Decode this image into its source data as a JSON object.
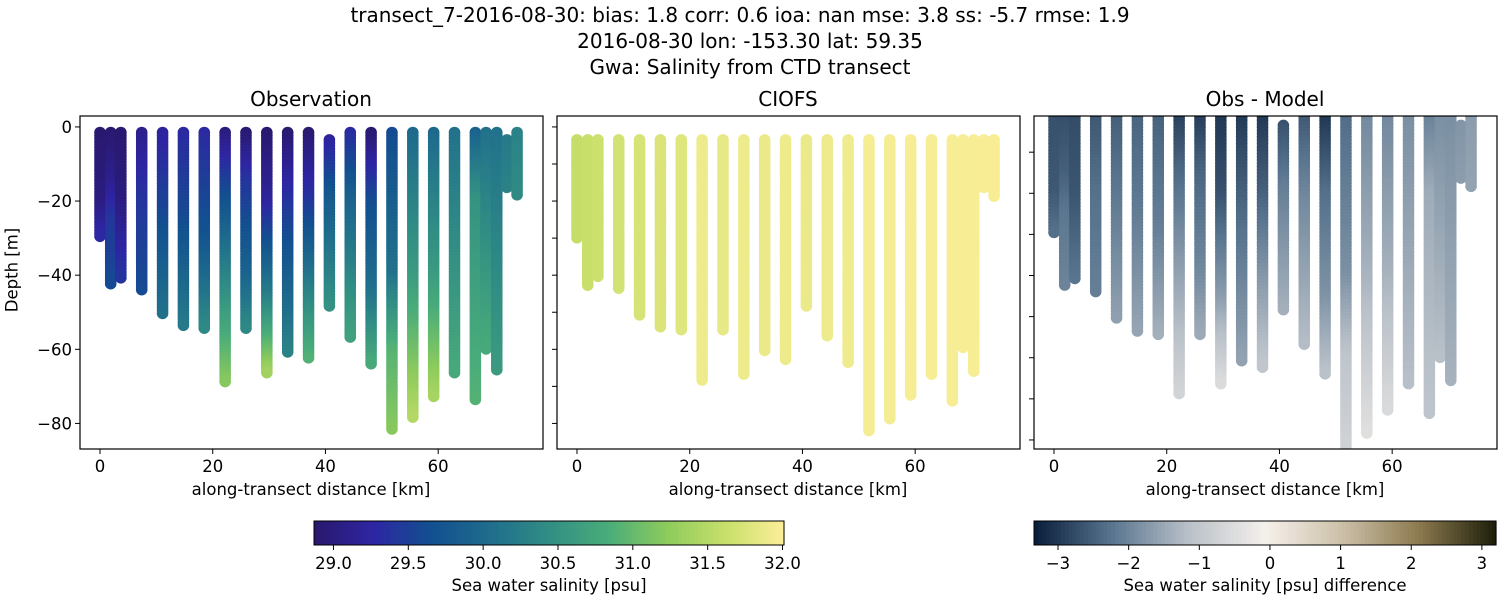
{
  "suptitle": {
    "line1": "transect_7-2016-08-30: bias: 1.8  corr: 0.6  ioa: nan  mse: 3.8  ss: -5.7  rmse: 1.9",
    "line2": "2016-08-30 lon: -153.30 lat: 59.35",
    "line3": "Gwa: Salinity from CTD transect"
  },
  "chart_data": [
    {
      "type": "scatter",
      "title": "Observation",
      "xlabel": "along-transect distance [km]",
      "ylabel": "Depth [m]",
      "xlim": [
        -3.55,
        78.6
      ],
      "ylim": [
        -86.9,
        2.95
      ],
      "xticks": [
        0,
        20,
        40,
        60
      ],
      "xtick_labels": [
        "0",
        "20",
        "40",
        "60"
      ],
      "yticks": [
        0,
        -20,
        -40,
        -60,
        -80
      ],
      "ytick_labels": [
        "0",
        "−20",
        "−40",
        "−60",
        "−80"
      ],
      "colormap": "haline",
      "stations_km": [
        0,
        1.9,
        3.7,
        7.4,
        11.1,
        14.8,
        18.5,
        22.2,
        25.9,
        29.6,
        33.3,
        37.0,
        40.7,
        44.4,
        48.1,
        51.8,
        55.5,
        59.2,
        62.9,
        66.6,
        68.5,
        70.4,
        72.2,
        74.0
      ],
      "profiles": [
        [
          [
            1.5,
            28.9
          ],
          [
            20,
            29.0
          ],
          [
            30,
            29.3
          ]
        ],
        [
          [
            1.5,
            28.9
          ],
          [
            15,
            29.1
          ],
          [
            25,
            29.4
          ],
          [
            43,
            29.6
          ]
        ],
        [
          [
            1.5,
            28.9
          ],
          [
            20,
            29.0
          ],
          [
            41,
            29.4
          ]
        ],
        [
          [
            1.5,
            29.1
          ],
          [
            20,
            29.4
          ],
          [
            44,
            29.6
          ]
        ],
        [
          [
            1.5,
            29.2
          ],
          [
            25,
            29.6
          ],
          [
            51,
            30.1
          ]
        ],
        [
          [
            1.5,
            29.3
          ],
          [
            25,
            29.6
          ],
          [
            54,
            30.2
          ]
        ],
        [
          [
            1.5,
            29.3
          ],
          [
            30,
            29.7
          ],
          [
            55,
            30.4
          ]
        ],
        [
          [
            1.5,
            29.0
          ],
          [
            15,
            29.5
          ],
          [
            40,
            30.3
          ],
          [
            69,
            31.2
          ]
        ],
        [
          [
            1.5,
            28.9
          ],
          [
            15,
            29.4
          ],
          [
            40,
            29.9
          ],
          [
            55,
            30.4
          ]
        ],
        [
          [
            1.5,
            28.9
          ],
          [
            20,
            29.2
          ],
          [
            45,
            30.2
          ],
          [
            67,
            31.4
          ]
        ],
        [
          [
            1.5,
            28.9
          ],
          [
            25,
            29.5
          ],
          [
            61,
            30.3
          ]
        ],
        [
          [
            1.5,
            28.9
          ],
          [
            20,
            29.4
          ],
          [
            45,
            30.3
          ],
          [
            63,
            30.9
          ]
        ],
        [
          [
            3.5,
            29.2
          ],
          [
            20,
            29.8
          ],
          [
            49,
            30.5
          ]
        ],
        [
          [
            1.5,
            29.3
          ],
          [
            20,
            29.9
          ],
          [
            57,
            30.7
          ]
        ],
        [
          [
            1.5,
            28.9
          ],
          [
            20,
            29.6
          ],
          [
            45,
            30.1
          ],
          [
            64,
            30.8
          ]
        ],
        [
          [
            1.5,
            29.6
          ],
          [
            40,
            30.1
          ],
          [
            60,
            30.9
          ],
          [
            82,
            31.2
          ]
        ],
        [
          [
            1.5,
            30.0
          ],
          [
            40,
            30.6
          ],
          [
            79,
            31.5
          ]
        ],
        [
          [
            1.5,
            30.0
          ],
          [
            40,
            30.6
          ],
          [
            73,
            31.4
          ]
        ],
        [
          [
            1.5,
            30.1
          ],
          [
            67,
            30.8
          ]
        ],
        [
          [
            1.5,
            29.9
          ],
          [
            20,
            30.5
          ],
          [
            74,
            30.9
          ]
        ],
        [
          [
            1.5,
            30.1
          ],
          [
            60,
            30.8
          ]
        ],
        [
          [
            1.5,
            30.1
          ],
          [
            66,
            30.6
          ]
        ],
        [
          [
            3.5,
            30.2
          ],
          [
            17,
            30.3
          ]
        ],
        [
          [
            1.5,
            30.3
          ],
          [
            19,
            30.4
          ]
        ]
      ]
    },
    {
      "type": "scatter",
      "title": "CIOFS",
      "xlabel": "along-transect distance [km]",
      "xlim": [
        -3.55,
        78.6
      ],
      "ylim": [
        -86.9,
        2.95
      ],
      "xticks": [
        0,
        20,
        40,
        60
      ],
      "xtick_labels": [
        "0",
        "20",
        "40",
        "60"
      ],
      "yticks": [
        0,
        -10,
        -20,
        -30,
        -40,
        -50,
        -60,
        -70,
        -80
      ],
      "colormap": "haline",
      "model_start_depth": 3.5,
      "model_salinity": [
        31.6,
        31.62,
        31.65,
        31.7,
        31.72,
        31.75,
        31.78,
        31.9,
        31.85,
        31.9,
        31.88,
        31.9,
        31.88,
        31.9,
        31.92,
        31.95,
        31.95,
        31.96,
        31.96,
        31.96,
        31.96,
        31.96,
        31.97,
        31.97
      ]
    },
    {
      "type": "scatter",
      "title": "Obs - Model",
      "xlabel": "along-transect distance [km]",
      "xlim": [
        -3.55,
        78.6
      ],
      "ylim": [
        -82.2,
        -1.2
      ],
      "xticks": [
        0,
        20,
        40,
        60
      ],
      "xtick_labels": [
        "0",
        "20",
        "40",
        "60"
      ],
      "yticks": [
        -10,
        -20,
        -30,
        -40,
        -50,
        -60,
        -70,
        -80
      ],
      "colormap": "diff"
    }
  ],
  "colorbars": [
    {
      "label": "Sea water salinity [psu]",
      "range": [
        28.87,
        32.01
      ],
      "ticks": [
        29.0,
        29.5,
        30.0,
        30.5,
        31.0,
        31.5,
        32.0
      ],
      "tick_labels": [
        "29.0",
        "29.5",
        "30.0",
        "30.5",
        "31.0",
        "31.5",
        "32.0"
      ]
    },
    {
      "label": "Sea water salinity [psu] difference",
      "range": [
        -3.34,
        3.2
      ],
      "ticks": [
        -3,
        -2,
        -1,
        0,
        1,
        2,
        3
      ],
      "tick_labels": [
        "−3",
        "−2",
        "−1",
        "0",
        "1",
        "2",
        "3"
      ]
    }
  ],
  "colors": {
    "haline": [
      "#29186b",
      "#2e25a3",
      "#12508f",
      "#1f6d8c",
      "#318e84",
      "#49ac7a",
      "#8ccb5c",
      "#c8df6a",
      "#fdef9a"
    ],
    "diff": [
      "#081d3a",
      "#58748e",
      "#b8c0c8",
      "#f5f0eb",
      "#ccc0a8",
      "#8c7a4f",
      "#1c1e0a"
    ]
  }
}
